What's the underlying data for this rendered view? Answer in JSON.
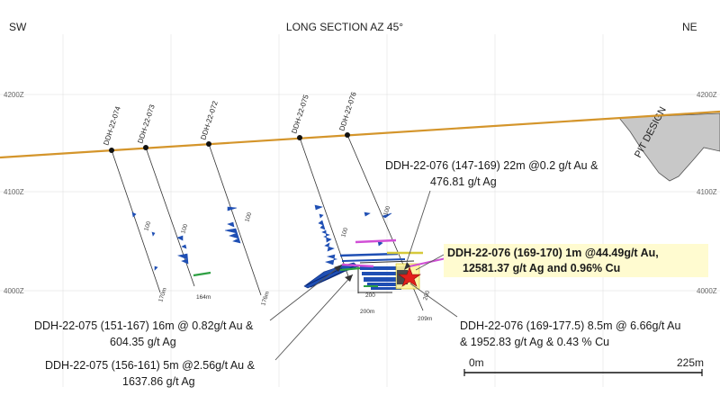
{
  "header": {
    "left": "SW",
    "title": "LONG SECTION AZ 45°",
    "right": "NE"
  },
  "elevations": {
    "left": [
      "4200Z",
      "4100Z",
      "4000Z"
    ],
    "right": [
      "4200Z",
      "4100Z",
      "4000Z"
    ]
  },
  "pit_label": "PIT DESIGN",
  "holes": [
    {
      "id": "DDH-22-074",
      "depth": "170m",
      "grade_label": ""
    },
    {
      "id": "DDH-22-073",
      "depth": "164m",
      "grade_label": "100"
    },
    {
      "id": "DDH-22-072",
      "depth": "176m",
      "grade_label": "100"
    },
    {
      "id": "DDH-22-075",
      "depth": "200m",
      "grade_label": "100"
    },
    {
      "id": "DDH-22-076",
      "depth": "209m",
      "grade_label": "100"
    }
  ],
  "extra_labels": {
    "ddh075_200": "200",
    "ddh076_200": "200"
  },
  "annotations": {
    "a1": {
      "line1": "DDH-22-076 (147-169) 22m @0.2 g/t Au &",
      "line2": "476.81 g/t Ag"
    },
    "a2": {
      "line1": "DDH-22-076 (169-170) 1m @44.49g/t Au,",
      "line2": "12581.37 g/t Ag and 0.96% Cu"
    },
    "a3": {
      "line1": "DDH-22-075 (151-167) 16m @ 0.82g/t Au &",
      "line2": "604.35 g/t Ag"
    },
    "a4": {
      "line1": "DDH-22-075 (156-161) 5m @2.56g/t Au &",
      "line2": "1637.86 g/t Ag"
    },
    "a5": {
      "line1": "DDH-22-076 (169-177.5) 8.5m @ 6.66g/t Au",
      "line2": "& 1952.83 g/t Ag & 0.43 % Cu"
    }
  },
  "scale": {
    "start": "0m",
    "end": "225m"
  },
  "colors": {
    "topography": "#d4952b",
    "pit": "#c8c8c8",
    "histogram": "#1f4fb4",
    "highlight": "#fff59a",
    "star": "#e3201b"
  }
}
